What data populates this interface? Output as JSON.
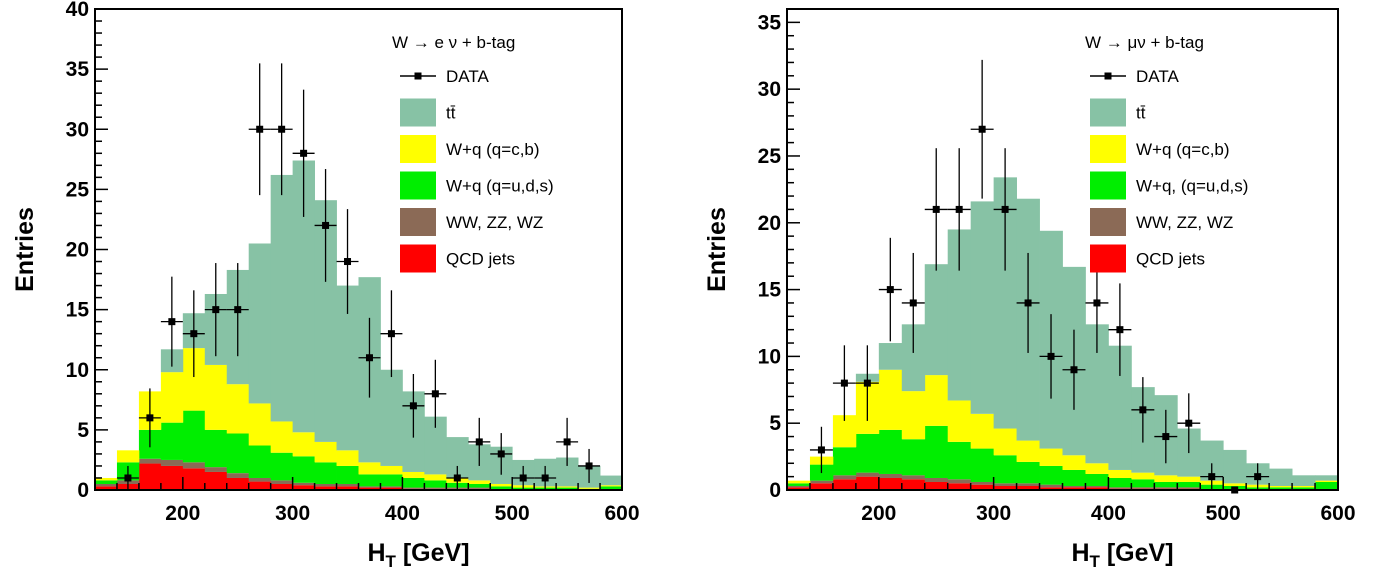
{
  "colors": {
    "ttbar": "#87c2a5",
    "wq_cb": "#ffff00",
    "wq_uds": "#00ee00",
    "diboson": "#8b6a56",
    "qcd": "#ff0000",
    "data": "#000000"
  },
  "chart_data": [
    {
      "type": "bar",
      "stacked": true,
      "grid": false,
      "legend_position": "top-right",
      "title": "W → e ν + b-tag",
      "xlabel": "H",
      "xlabel_subscript": "T",
      "xlabel_unit": " [GeV]",
      "ylabel": "Entries",
      "xlim": [
        120,
        600
      ],
      "ylim": [
        0,
        40
      ],
      "x_ticks": [
        200,
        300,
        400,
        500,
        600
      ],
      "y_ticks": [
        0,
        5,
        10,
        15,
        20,
        25,
        30,
        35,
        40
      ],
      "bin_edges": [
        120,
        140,
        160,
        180,
        200,
        220,
        240,
        260,
        280,
        300,
        320,
        340,
        360,
        380,
        400,
        420,
        440,
        460,
        480,
        500,
        520,
        540,
        560,
        580,
        600
      ],
      "series": [
        {
          "name": "QCD jets",
          "color_key": "qcd",
          "values": [
            0.3,
            0.5,
            2.2,
            2.0,
            1.8,
            1.5,
            1.0,
            0.7,
            0.5,
            0.4,
            0.3,
            0.3,
            0.2,
            0.2,
            0.1,
            0.1,
            0.1,
            0.1,
            0,
            0,
            0,
            0,
            0,
            0
          ]
        },
        {
          "name": "WW, ZZ, WZ",
          "color_key": "diboson",
          "values": [
            0.2,
            0.3,
            0.4,
            0.5,
            0.5,
            0.4,
            0.4,
            0.3,
            0.3,
            0.2,
            0.2,
            0.2,
            0.1,
            0.1,
            0.1,
            0.1,
            0.1,
            0.1,
            0,
            0,
            0,
            0,
            0,
            0
          ]
        },
        {
          "name": "W+q (q=u,d,s)",
          "color_key": "wq_uds",
          "values": [
            0.3,
            1.5,
            2.4,
            3.1,
            4.3,
            3.1,
            3.3,
            2.7,
            2.3,
            2.2,
            1.8,
            1.5,
            1.0,
            1.0,
            0.8,
            0.6,
            0.4,
            0.3,
            0.3,
            0.2,
            0.2,
            0.2,
            0.1,
            0.3
          ]
        },
        {
          "name": "W+q (q=c,b)",
          "color_key": "wq_cb",
          "values": [
            0.2,
            1.0,
            3.2,
            4.2,
            5.2,
            5.4,
            4.1,
            3.5,
            2.6,
            2.0,
            1.7,
            1.3,
            1.0,
            0.7,
            0.5,
            0.5,
            0.4,
            0.3,
            0.2,
            0.2,
            0.1,
            0.1,
            0.1,
            0.1
          ]
        },
        {
          "name": "tt̄",
          "color_key": "ttbar",
          "values": [
            0,
            0,
            0,
            1.9,
            2.9,
            5.9,
            9.5,
            13.3,
            20.5,
            22.6,
            20.1,
            13.7,
            15.4,
            8.0,
            6.7,
            4.8,
            3.4,
            3.0,
            3.1,
            2.1,
            2.3,
            2.4,
            1.8,
            0.8
          ]
        }
      ],
      "data": {
        "name": "DATA",
        "x": [
          150,
          170,
          190,
          210,
          230,
          250,
          270,
          290,
          310,
          330,
          350,
          370,
          390,
          410,
          430,
          450,
          470,
          490,
          510,
          530,
          550,
          570
        ],
        "y": [
          1,
          6,
          14,
          13,
          15,
          15,
          30,
          30,
          28,
          22,
          19,
          11,
          13,
          7,
          8,
          1,
          4,
          3,
          1,
          1,
          4,
          2
        ]
      }
    },
    {
      "type": "bar",
      "stacked": true,
      "grid": false,
      "legend_position": "top-right",
      "title": "W → μν + b-tag",
      "xlabel": "H",
      "xlabel_subscript": "T",
      "xlabel_unit": " [GeV]",
      "ylabel": "Entries",
      "xlim": [
        120,
        600
      ],
      "ylim": [
        0,
        36
      ],
      "x_ticks": [
        200,
        300,
        400,
        500,
        600
      ],
      "y_ticks": [
        0,
        5,
        10,
        15,
        20,
        25,
        30,
        35
      ],
      "bin_edges": [
        120,
        140,
        160,
        180,
        200,
        220,
        240,
        260,
        280,
        300,
        320,
        340,
        360,
        380,
        400,
        420,
        440,
        460,
        480,
        500,
        520,
        540,
        560,
        580,
        600
      ],
      "series": [
        {
          "name": "QCD jets",
          "color_key": "qcd",
          "values": [
            0.2,
            0.5,
            0.8,
            1.0,
            0.9,
            0.8,
            0.6,
            0.5,
            0.4,
            0.3,
            0.3,
            0.2,
            0.2,
            0.2,
            0.1,
            0.1,
            0.1,
            0.1,
            0,
            0,
            0,
            0,
            0,
            0
          ]
        },
        {
          "name": "WW, ZZ, WZ",
          "color_key": "diboson",
          "values": [
            0.1,
            0.2,
            0.3,
            0.3,
            0.3,
            0.3,
            0.3,
            0.3,
            0.2,
            0.2,
            0.2,
            0.2,
            0.1,
            0.1,
            0.1,
            0.1,
            0.1,
            0.1,
            0,
            0,
            0,
            0,
            0,
            0
          ]
        },
        {
          "name": "W+q, (q=u,d,s)",
          "color_key": "wq_uds",
          "values": [
            0.2,
            1.2,
            2.1,
            2.9,
            3.3,
            2.7,
            3.9,
            2.8,
            2.5,
            2.1,
            1.6,
            1.4,
            1.2,
            0.9,
            0.7,
            0.6,
            0.4,
            0.4,
            0.4,
            0.3,
            0.2,
            0.2,
            0.2,
            0.6
          ]
        },
        {
          "name": "W+q (q=c,b)",
          "color_key": "wq_cb",
          "values": [
            0.2,
            0.6,
            2.4,
            3.9,
            4.5,
            3.6,
            3.8,
            3.1,
            2.6,
            2.0,
            1.6,
            1.3,
            1.1,
            0.8,
            0.6,
            0.5,
            0.5,
            0.4,
            0.3,
            0.2,
            0.2,
            0.1,
            0.1,
            0.1
          ]
        },
        {
          "name": "tt̄",
          "color_key": "ttbar",
          "values": [
            0,
            0,
            0,
            0.6,
            2.0,
            5.0,
            8.3,
            12.8,
            15.9,
            18.8,
            18.1,
            16.3,
            14.1,
            10.4,
            9.3,
            6.4,
            6.0,
            3.6,
            3.0,
            2.5,
            1.6,
            1.3,
            0.8,
            0.4
          ]
        }
      ],
      "data": {
        "name": "DATA",
        "x": [
          150,
          170,
          190,
          210,
          230,
          250,
          270,
          290,
          310,
          330,
          350,
          370,
          390,
          410,
          430,
          450,
          470,
          490,
          510,
          530
        ],
        "y": [
          3,
          8,
          8,
          15,
          14,
          21,
          21,
          27,
          21,
          14,
          10,
          9,
          14,
          12,
          6,
          4,
          5,
          1,
          0,
          1
        ]
      }
    }
  ]
}
